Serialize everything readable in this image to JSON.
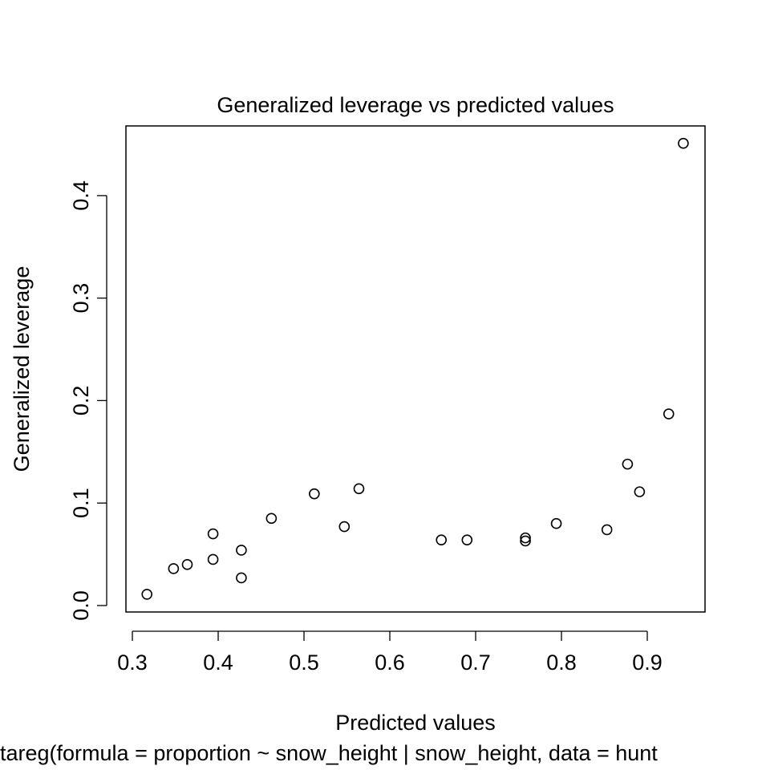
{
  "chart_data": {
    "type": "scatter",
    "title": "Generalized leverage vs predicted values",
    "x_label": "Predicted values",
    "y_label": "Generalized leverage",
    "subtitle": "tareg(formula = proportion ~ snow_height | snow_height, data = hunt",
    "x": [
      0.317,
      0.348,
      0.364,
      0.394,
      0.394,
      0.427,
      0.427,
      0.462,
      0.512,
      0.547,
      0.564,
      0.66,
      0.69,
      0.758,
      0.758,
      0.794,
      0.853,
      0.877,
      0.891,
      0.925,
      0.942
    ],
    "values": [
      0.011,
      0.036,
      0.04,
      0.045,
      0.07,
      0.054,
      0.027,
      0.085,
      0.109,
      0.077,
      0.114,
      0.064,
      0.064,
      0.066,
      0.063,
      0.08,
      0.074,
      0.138,
      0.111,
      0.187,
      0.451
    ],
    "color": "#000000",
    "xlim": [
      0.2925,
      0.9673
    ],
    "ylim": [
      -0.0063,
      0.468
    ],
    "xticks": [
      0.3,
      0.4,
      0.5,
      0.6,
      0.7,
      0.8,
      0.9
    ],
    "yticks": [
      {
        "value": 0,
        "label": "0.0"
      },
      0.1,
      0.2,
      0.3,
      0.4
    ]
  }
}
